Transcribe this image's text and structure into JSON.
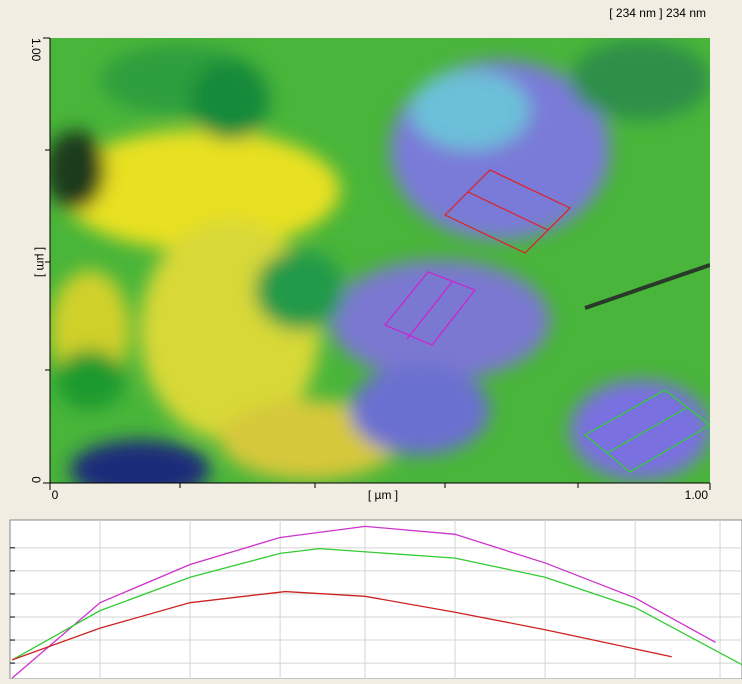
{
  "header_label": "[ 234 nm ] 234 nm",
  "image": {
    "x_axis_label": "[ µm ]",
    "y_axis_label": "[ µm ]",
    "xlim": [
      0,
      1
    ],
    "ylim": [
      0,
      1
    ],
    "xticks": [
      0,
      {
        "value": 1,
        "label": "1.00"
      }
    ],
    "yticks": [
      0,
      {
        "value": 1,
        "label": "1.00"
      }
    ]
  },
  "chart_data": {
    "type": "line",
    "xlim": [
      0,
      100
    ],
    "ylim": [
      0,
      100
    ],
    "grid": true,
    "xticks": [
      12.3,
      24.6,
      36.9,
      48.5,
      60.8,
      73.1,
      85.4,
      97
    ],
    "yticks": [
      10,
      24.5,
      39,
      53.5,
      68,
      82.5
    ],
    "series": [
      {
        "color": "#cc33cc",
        "x": [
          0.3,
          12.3,
          24.6,
          36.9,
          48.5,
          60.8,
          73.1,
          85.4,
          96.4
        ],
        "values": [
          0.6,
          48,
          72,
          89,
          96,
          91,
          73,
          51,
          23
        ]
      },
      {
        "color": "#33cc33",
        "x": [
          0.3,
          12.3,
          24.6,
          36.9,
          42.3,
          60.8,
          73.1,
          85.4,
          100
        ],
        "values": [
          12,
          43,
          64,
          79,
          82,
          76,
          64,
          45,
          9
        ]
      },
      {
        "color": "#cc2222",
        "x": [
          0.3,
          12.3,
          24.6,
          37.6,
          48.5,
          60.8,
          73.1,
          90.4
        ],
        "values": [
          12,
          32,
          48,
          55,
          52,
          42,
          31,
          14
        ]
      }
    ]
  }
}
